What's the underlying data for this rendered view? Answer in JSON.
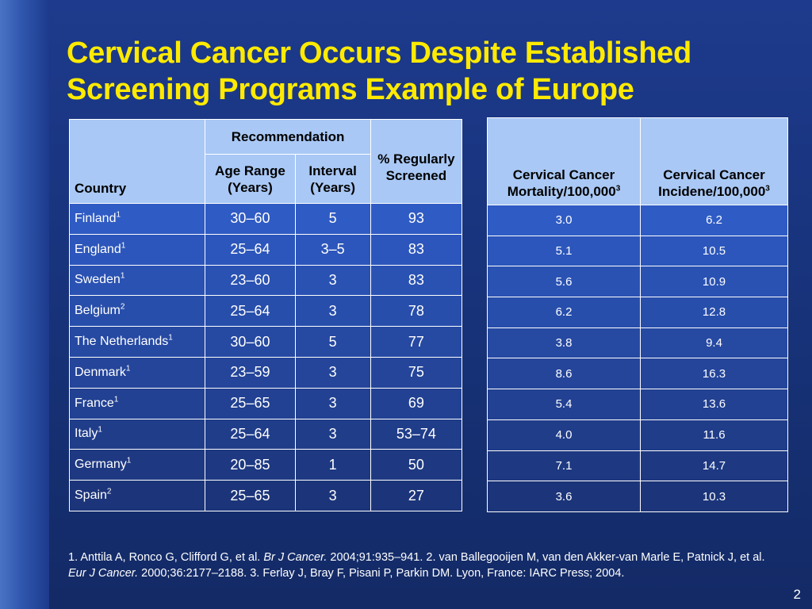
{
  "title": {
    "line1": "Cervical Cancer Occurs Despite Established",
    "line2": "Screening Programs Example of Europe"
  },
  "table1": {
    "col_country": "Country",
    "col_recommendation": "Recommendation",
    "col_age_range": "Age Range (Years)",
    "col_interval": "Interval (Years)",
    "col_regularly_screened": "% Regularly Screened",
    "rows": [
      {
        "country": "Finland",
        "ref": "1",
        "age": "30–60",
        "interval": "5",
        "screened": "93"
      },
      {
        "country": "England",
        "ref": "1",
        "age": "25–64",
        "interval": "3–5",
        "screened": "83"
      },
      {
        "country": "Sweden",
        "ref": "1",
        "age": "23–60",
        "interval": "3",
        "screened": "83"
      },
      {
        "country": "Belgium",
        "ref": "2",
        "age": "25–64",
        "interval": "3",
        "screened": "78"
      },
      {
        "country": "The Netherlands",
        "ref": "1",
        "age": "30–60",
        "interval": "5",
        "screened": "77"
      },
      {
        "country": "Denmark",
        "ref": "1",
        "age": "23–59",
        "interval": "3",
        "screened": "75"
      },
      {
        "country": "France",
        "ref": "1",
        "age": "25–65",
        "interval": "3",
        "screened": "69"
      },
      {
        "country": "Italy",
        "ref": "1",
        "age": "25–64",
        "interval": "3",
        "screened": "53–74"
      },
      {
        "country": "Germany",
        "ref": "1",
        "age": "20–85",
        "interval": "1",
        "screened": "50"
      },
      {
        "country": "Spain",
        "ref": "2",
        "age": "25–65",
        "interval": "3",
        "screened": "27"
      }
    ]
  },
  "table2": {
    "col_mortality": "Cervical Cancer Mortality/100,000",
    "col_mortality_ref": "3",
    "col_incidence": "Cervical Cancer Incidene/100,000",
    "col_incidence_ref": "3",
    "rows": [
      {
        "mortality": "3.0",
        "incidence": "6.2"
      },
      {
        "mortality": "5.1",
        "incidence": "10.5"
      },
      {
        "mortality": "5.6",
        "incidence": "10.9"
      },
      {
        "mortality": "6.2",
        "incidence": "12.8"
      },
      {
        "mortality": "3.8",
        "incidence": "9.4"
      },
      {
        "mortality": "8.6",
        "incidence": "16.3"
      },
      {
        "mortality": "5.4",
        "incidence": "13.6"
      },
      {
        "mortality": "4.0",
        "incidence": "11.6"
      },
      {
        "mortality": "7.1",
        "incidence": "14.7"
      },
      {
        "mortality": "3.6",
        "incidence": "10.3"
      }
    ]
  },
  "references": {
    "r1_pre": "1. Anttila A, Ronco G, Clifford G, et al. ",
    "r1_journal": "Br J Cancer.",
    "r1_post": " 2004;91:935–941. 2. van Ballegooijen M, van den Akker-van Marle E, Patnick J, et al. ",
    "r2_journal": "Eur J Cancer.",
    "r2_post": " 2000;36:2177–2188. 3. Ferlay J, Bray F, Pisani P, Parkin DM. Lyon, France: IARC Press; 2004."
  },
  "page_number": "2",
  "colors": {
    "background": "#1d3a8c",
    "title": "#ffea00",
    "header_fill": "#a9c8f5",
    "row_fill": "#2f5bc4"
  }
}
